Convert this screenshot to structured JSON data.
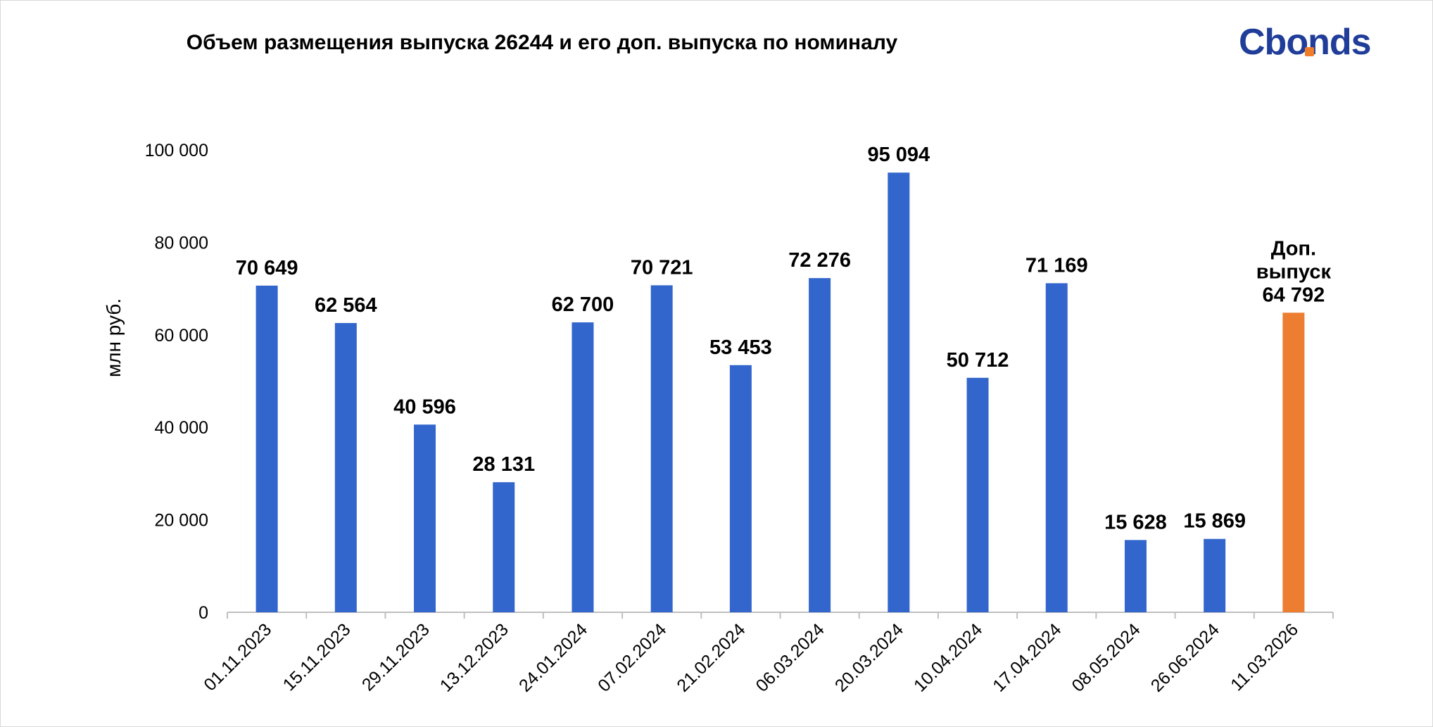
{
  "chart_data": {
    "type": "bar",
    "title": "Объем размещения выпуска 26244 и его доп. выпуска по номиналу",
    "ylabel": "млн руб.",
    "xlabel": "",
    "ylim": [
      0,
      100000
    ],
    "y_ticks": [
      "0",
      "20 000",
      "40 000",
      "60 000",
      "80 000",
      "100 000"
    ],
    "y_tick_values": [
      0,
      20000,
      40000,
      60000,
      80000,
      100000
    ],
    "grid": false,
    "categories": [
      "01.11.2023",
      "15.11.2023",
      "29.11.2023",
      "13.12.2023",
      "24.01.2024",
      "07.02.2024",
      "21.02.2024",
      "06.03.2024",
      "20.03.2024",
      "10.04.2024",
      "17.04.2024",
      "08.05.2024",
      "26.06.2024",
      "11.03.2026"
    ],
    "values": [
      70649,
      62564,
      40596,
      28131,
      62700,
      70721,
      53453,
      72276,
      95094,
      50712,
      71169,
      15628,
      15869,
      64792
    ],
    "data_labels": [
      "70 649",
      "62 564",
      "40 596",
      "28 131",
      "62 700",
      "70 721",
      "53 453",
      "72 276",
      "95 094",
      "50 712",
      "71 169",
      "15 628",
      "15 869",
      "64 792"
    ],
    "highlight_index": 13,
    "highlight_label_lines": [
      "Доп.",
      "выпуск"
    ],
    "colors": {
      "bar": "#3366cc",
      "highlight": "#ed7d31"
    }
  },
  "logo": {
    "text": "Cbonds"
  }
}
